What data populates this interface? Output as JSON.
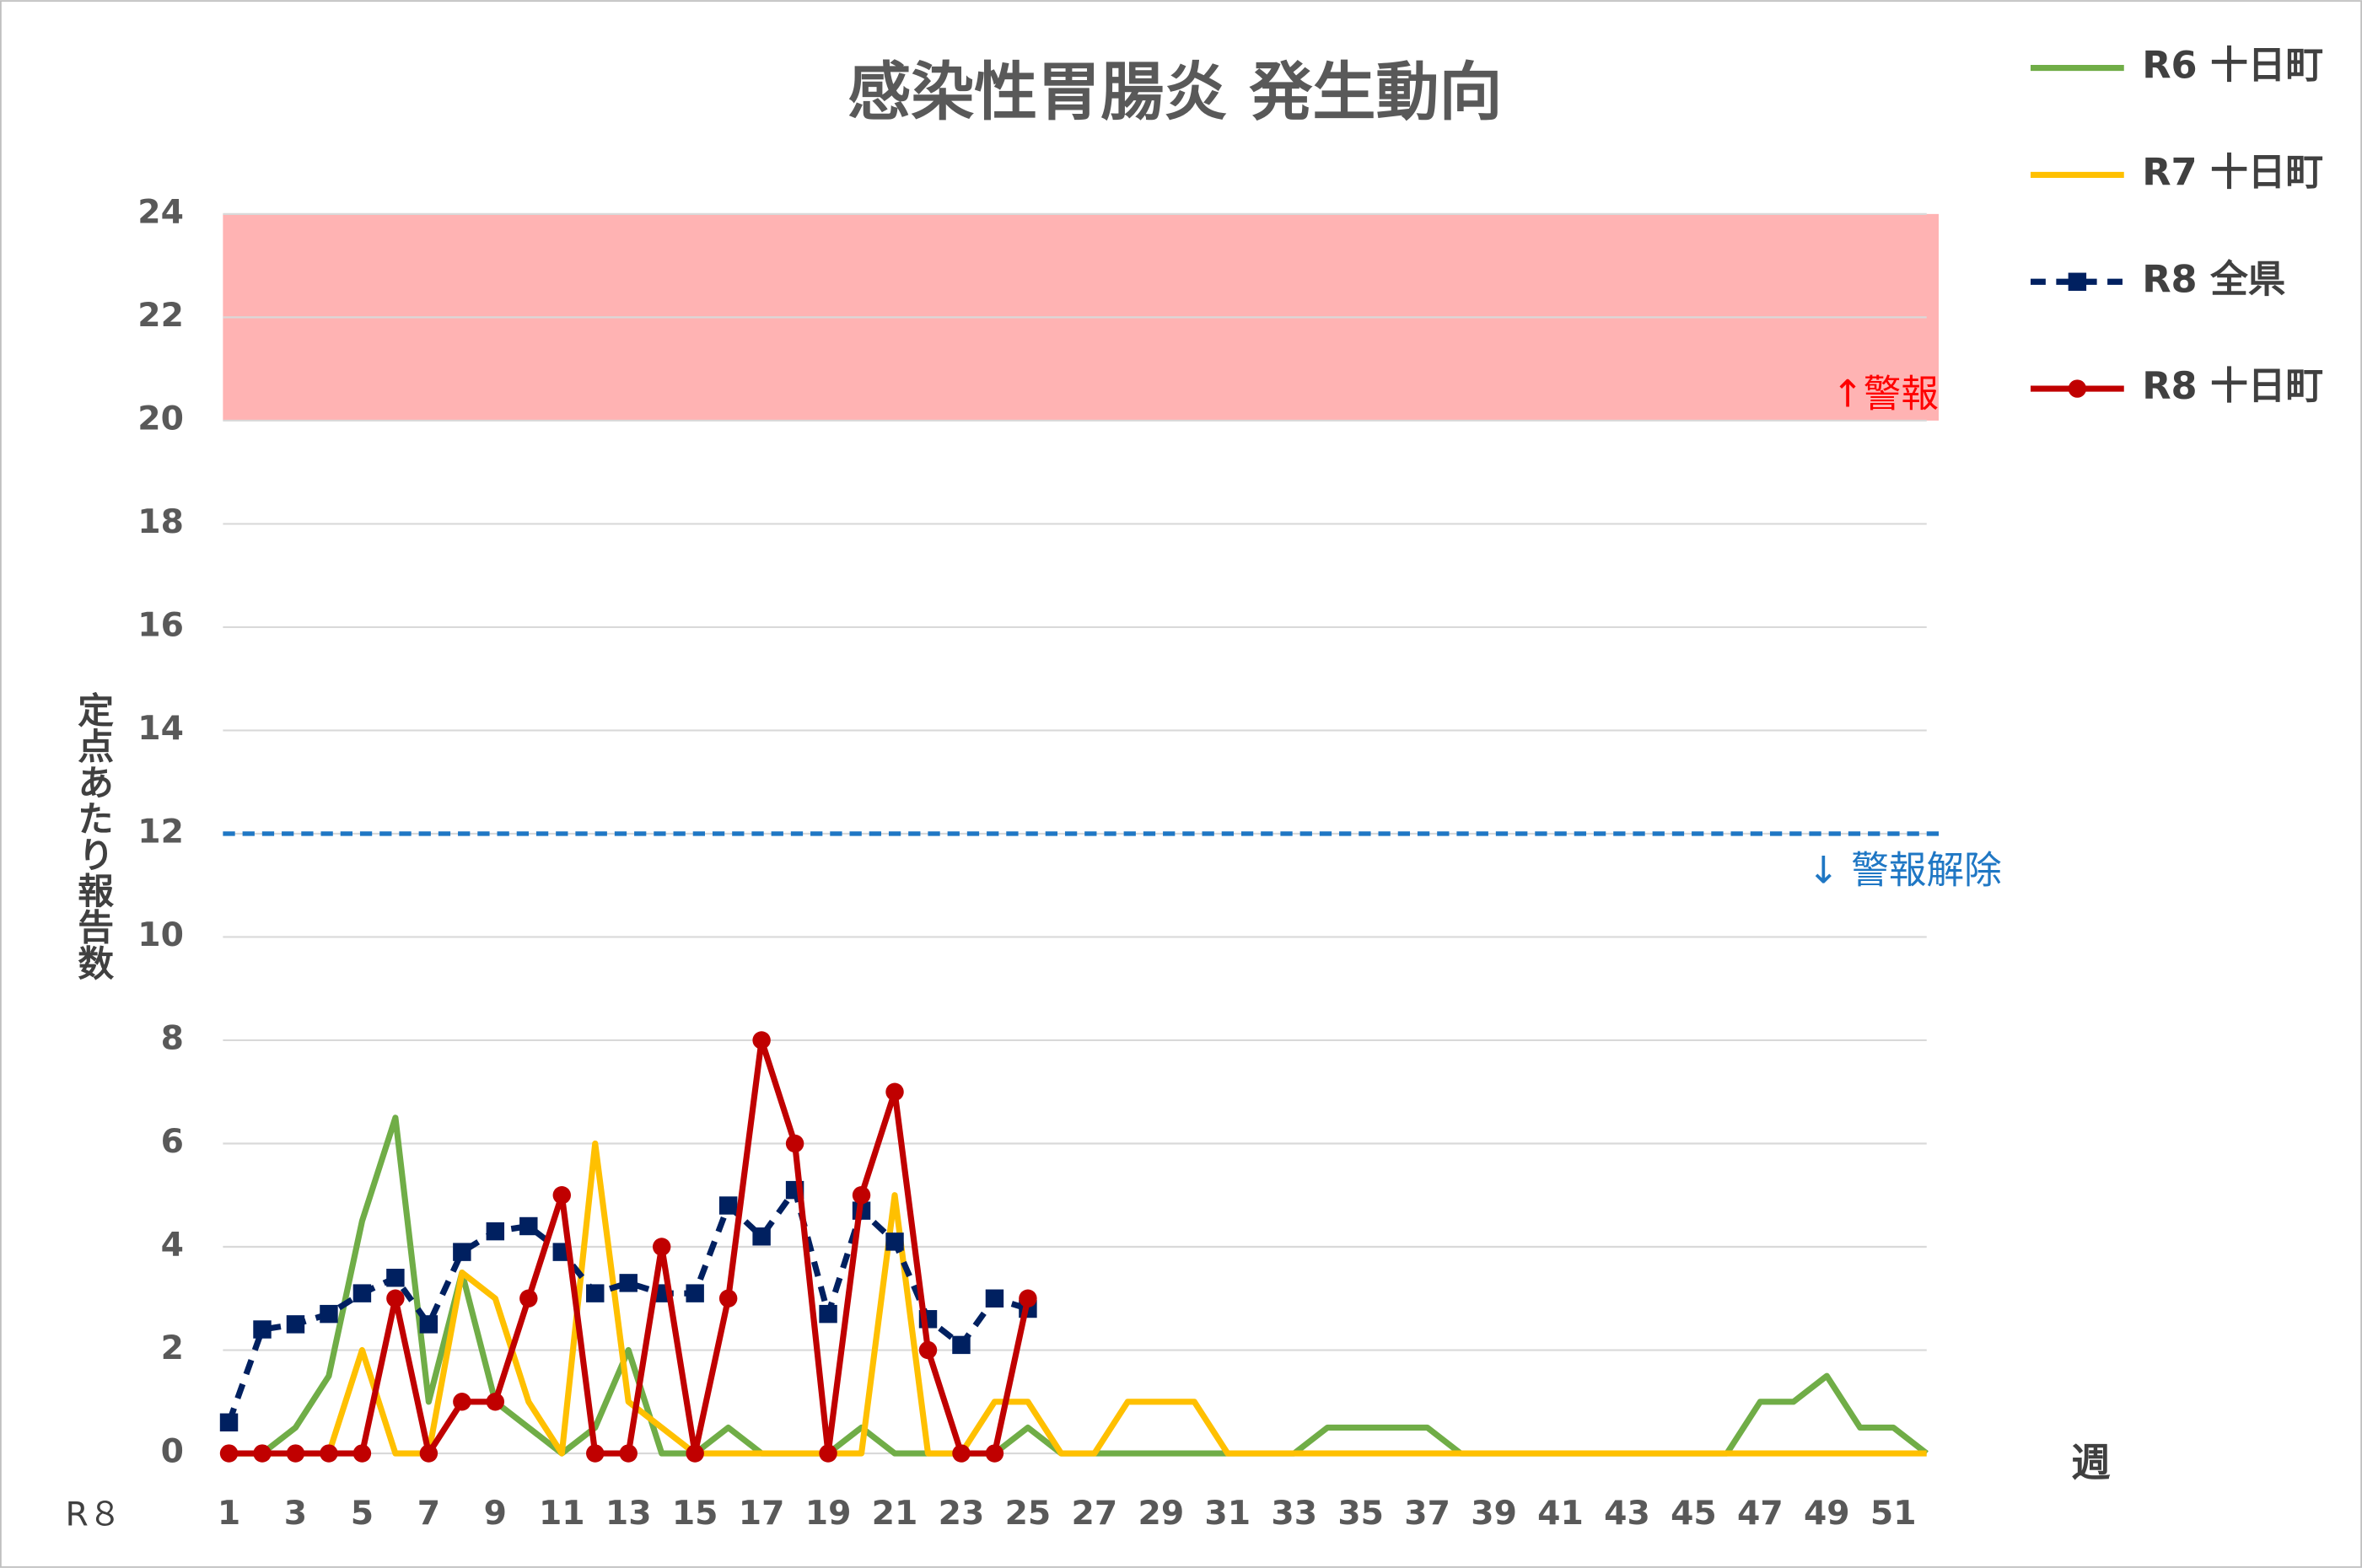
{
  "chart_data": {
    "type": "line",
    "title": "感染性胃腸炎 発生動向",
    "y_label": "定点あたり報告数",
    "x_label": "週",
    "x_prefix_label": "R８",
    "x": [
      1,
      2,
      3,
      4,
      5,
      6,
      7,
      8,
      9,
      10,
      11,
      12,
      13,
      14,
      15,
      16,
      17,
      18,
      19,
      20,
      21,
      22,
      23,
      24,
      25,
      26,
      27,
      28,
      29,
      30,
      31,
      32,
      33,
      34,
      35,
      36,
      37,
      38,
      39,
      40,
      41,
      42,
      43,
      44,
      45,
      46,
      47,
      48,
      49,
      50,
      51,
      52
    ],
    "xlim": [
      1,
      52
    ],
    "xticks": [
      1,
      3,
      5,
      7,
      9,
      11,
      13,
      15,
      17,
      19,
      21,
      23,
      25,
      27,
      29,
      31,
      33,
      35,
      37,
      39,
      41,
      43,
      45,
      47,
      49,
      51
    ],
    "ylim": [
      0,
      24
    ],
    "yticks": [
      0,
      2,
      4,
      6,
      8,
      10,
      12,
      14,
      16,
      18,
      20,
      22,
      24
    ],
    "grid": true,
    "legend": "top-right",
    "alert_band": {
      "from": 20,
      "to": 24,
      "label": "↑警報",
      "color": "#ffb3b3",
      "label_color": "#ff0000"
    },
    "clear_level": {
      "value": 12,
      "label": "↓ 警報解除",
      "color": "#1f77c4"
    },
    "series": [
      {
        "name": "R6 十日町",
        "color": "#70ad47",
        "marker": "none",
        "dashed": false,
        "values": [
          0,
          0,
          0.5,
          1.5,
          4.5,
          6.5,
          1,
          3.5,
          1,
          0.5,
          0,
          0.5,
          2,
          0,
          0,
          0.5,
          0,
          0,
          0,
          0.5,
          0,
          0,
          0,
          0,
          0.5,
          0,
          0,
          0,
          0,
          0,
          0,
          0,
          0,
          0.5,
          0.5,
          0.5,
          0.5,
          0,
          0,
          0,
          0,
          0,
          0,
          0,
          0,
          0,
          1,
          1,
          1.5,
          0.5,
          0.5,
          0
        ]
      },
      {
        "name": "R7 十日町",
        "color": "#ffc000",
        "marker": "none",
        "dashed": false,
        "values": [
          0,
          0,
          0,
          0,
          2,
          0,
          0,
          3.5,
          3,
          1,
          0,
          6,
          1,
          0.5,
          0,
          0,
          0,
          0,
          0,
          0,
          5,
          0,
          0,
          1,
          1,
          0,
          0,
          1,
          1,
          1,
          0,
          0,
          0,
          0,
          0,
          0,
          0,
          0,
          0,
          0,
          0,
          0,
          0,
          0,
          0,
          0,
          0,
          0,
          0,
          0,
          0,
          0
        ]
      },
      {
        "name": "R8 全県",
        "color": "#002060",
        "marker": "square",
        "dashed": true,
        "values": [
          0.6,
          2.4,
          2.5,
          2.7,
          3.1,
          3.4,
          2.5,
          3.9,
          4.3,
          4.4,
          3.9,
          3.1,
          3.3,
          3.1,
          3.1,
          4.8,
          4.2,
          5.1,
          2.7,
          4.7,
          4.1,
          2.6,
          2.1,
          3.0,
          2.8,
          null,
          null,
          null,
          null,
          null,
          null,
          null,
          null,
          null,
          null,
          null,
          null,
          null,
          null,
          null,
          null,
          null,
          null,
          null,
          null,
          null,
          null,
          null,
          null,
          null,
          null,
          null
        ]
      },
      {
        "name": "R8 十日町",
        "color": "#c00000",
        "marker": "circle",
        "dashed": false,
        "values": [
          0,
          0,
          0,
          0,
          0,
          3,
          0,
          1,
          1,
          3,
          5,
          0,
          0,
          4,
          0,
          3,
          8,
          6,
          0,
          5,
          7,
          2,
          0,
          0,
          3,
          null,
          null,
          null,
          null,
          null,
          null,
          null,
          null,
          null,
          null,
          null,
          null,
          null,
          null,
          null,
          null,
          null,
          null,
          null,
          null,
          null,
          null,
          null,
          null,
          null,
          null,
          null
        ]
      }
    ]
  }
}
